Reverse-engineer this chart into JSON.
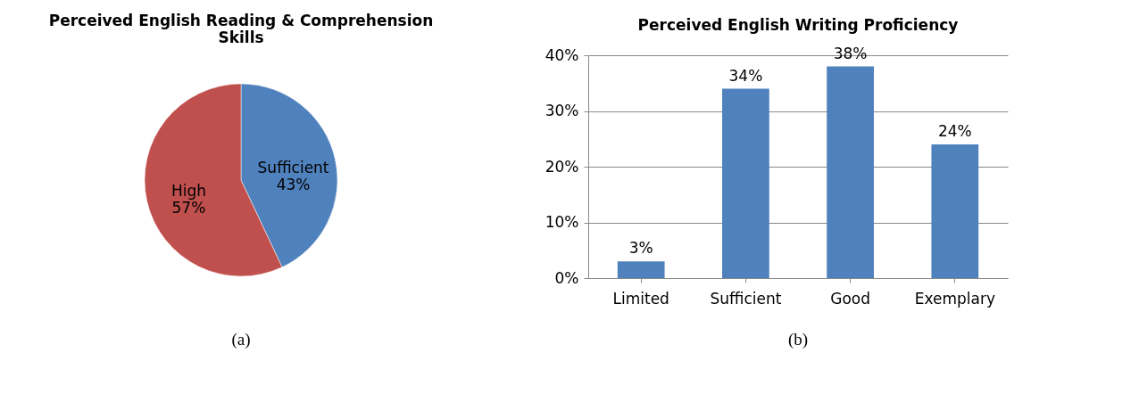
{
  "chart_data": [
    {
      "type": "pie",
      "title": "Perceived English Reading & Comprehension Skills",
      "categories": [
        "Sufficient",
        "High"
      ],
      "values": [
        43,
        57
      ],
      "colors": [
        "#4f81bd",
        "#c0504d"
      ],
      "value_labels": [
        "43%",
        "57%"
      ],
      "legend": false,
      "annotations": [
        "(a)"
      ]
    },
    {
      "type": "bar",
      "title": "Perceived English Writing Proficiency",
      "categories": [
        "Limited",
        "Sufficient",
        "Good",
        "Exemplary"
      ],
      "series": [
        {
          "color": "#4f81bd",
          "values": [
            3,
            34,
            38,
            24
          ]
        }
      ],
      "value_labels": [
        "3%",
        "34%",
        "38%",
        "24%"
      ],
      "ylim": [
        0,
        40
      ],
      "yticks": [
        {
          "value": 0,
          "label": "0%"
        },
        {
          "value": 10,
          "label": "10%"
        },
        {
          "value": 20,
          "label": "20%"
        },
        {
          "value": 30,
          "label": "30%"
        },
        {
          "value": 40,
          "label": "40%"
        }
      ],
      "grid": "y",
      "annotations": [
        "(b)"
      ]
    }
  ]
}
